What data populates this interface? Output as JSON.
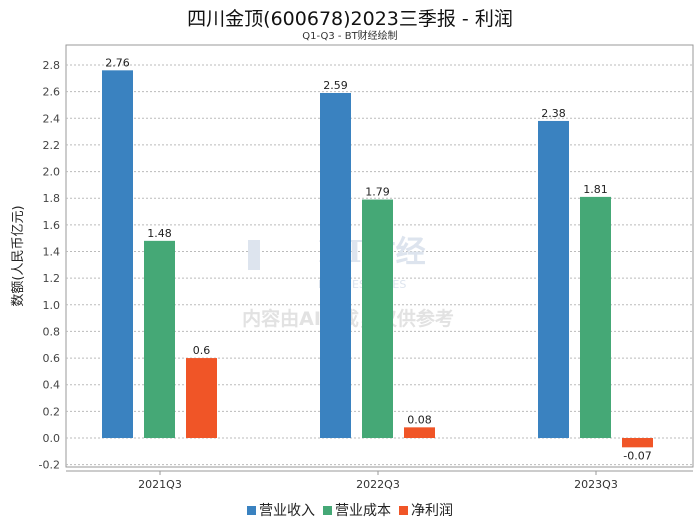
{
  "chart_data": {
    "type": "bar",
    "title": "四川金顶(600678)2023三季报 - 利润",
    "subtitle": "Q1-Q3 - BT财经绘制",
    "xlabel": "",
    "ylabel": "数额(人民币亿元)",
    "ylim": [
      -0.2,
      2.8
    ],
    "yticks": [
      "-0.2",
      "0.0",
      "0.2",
      "0.4",
      "0.6",
      "0.8",
      "1.0",
      "1.2",
      "1.4",
      "1.6",
      "1.8",
      "2.0",
      "2.2",
      "2.4",
      "2.6",
      "2.8"
    ],
    "categories": [
      "2021Q3",
      "2022Q3",
      "2023Q3"
    ],
    "series": [
      {
        "name": "营业收入",
        "color": "#3a82c0",
        "values": [
          2.76,
          2.59,
          2.38
        ],
        "labels": [
          "2.76",
          "2.59",
          "2.38"
        ]
      },
      {
        "name": "营业成本",
        "color": "#45a876",
        "values": [
          1.48,
          1.79,
          1.81
        ],
        "labels": [
          "1.48",
          "1.79",
          "1.81"
        ]
      },
      {
        "name": "净利润",
        "color": "#f05527",
        "values": [
          0.6,
          0.08,
          -0.07
        ],
        "labels": [
          "0.6",
          "0.08",
          "-0.07"
        ]
      }
    ],
    "grid": true,
    "legend_position": "bottom-center"
  },
  "watermark": {
    "brand": "BT财经",
    "brand_en": "BUSINESSTIMES",
    "notice": "内容由AI生成，仅供参考"
  }
}
